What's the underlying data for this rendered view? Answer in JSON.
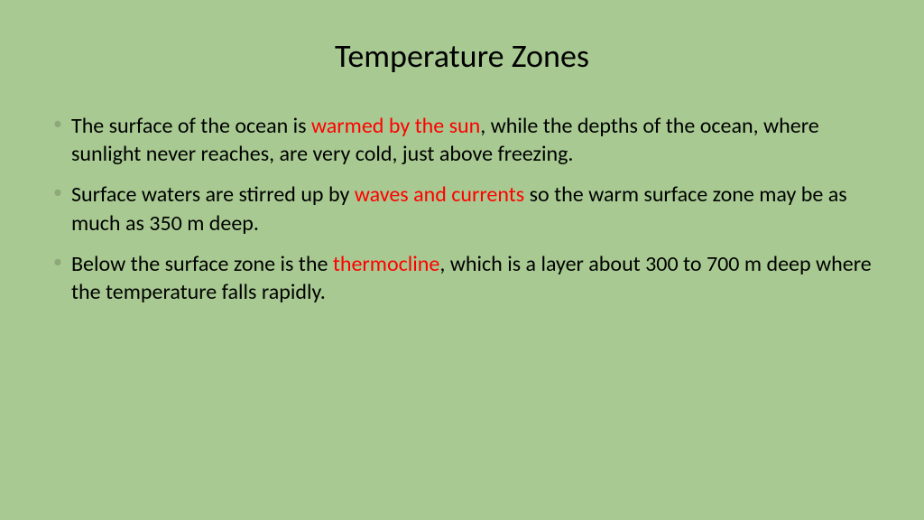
{
  "slide": {
    "background_color": "#a8ca92",
    "title": {
      "text": "Temperature Zones",
      "color": "#000000",
      "fontsize": 36
    },
    "body_fontsize": 24,
    "text_color": "#000000",
    "highlight_color": "#ff0000",
    "bullet_color": "#8fa87a",
    "bullets": [
      {
        "pre": "The surface of the ocean is ",
        "hl": "warmed by the sun",
        "post": ", while the depths of the ocean, where sunlight never reaches, are very cold, just above freezing."
      },
      {
        "pre": "Surface waters are stirred up by ",
        "hl": "waves and currents",
        "post": " so the warm surface zone may be as much as 350 m deep."
      },
      {
        "pre": "Below the surface zone is the ",
        "hl": "thermocline",
        "post": ", which is a layer about 300 to 700 m deep where the temperature falls rapidly."
      }
    ]
  }
}
